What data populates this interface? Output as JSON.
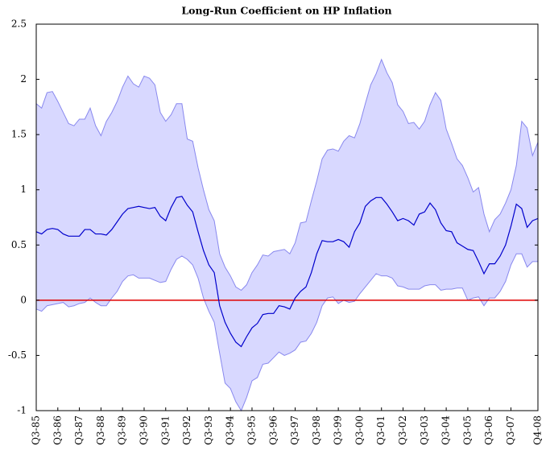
{
  "chart_data": {
    "type": "line",
    "title": "Long-Run Coefficient on HP Inflation",
    "categories": [
      "Q3-85",
      null,
      null,
      null,
      "Q3-86",
      null,
      null,
      null,
      "Q3-87",
      null,
      null,
      null,
      "Q3-88",
      null,
      null,
      null,
      "Q3-89",
      null,
      null,
      null,
      "Q3-90",
      null,
      null,
      null,
      "Q3-91",
      null,
      null,
      null,
      "Q3-92",
      null,
      null,
      null,
      "Q3-93",
      null,
      null,
      null,
      "Q3-94",
      null,
      null,
      null,
      "Q3-95",
      null,
      null,
      null,
      "Q3-96",
      null,
      null,
      null,
      "Q3-97",
      null,
      null,
      null,
      "Q3-98",
      null,
      null,
      null,
      "Q3-99",
      null,
      null,
      null,
      "Q3-00",
      null,
      null,
      null,
      "Q3-01",
      null,
      null,
      null,
      "Q3-02",
      null,
      null,
      null,
      "Q3-03",
      null,
      null,
      null,
      "Q3-04",
      null,
      null,
      null,
      "Q3-05",
      null,
      null,
      null,
      "Q3-06",
      null,
      null,
      null,
      "Q3-07",
      null,
      null,
      null,
      null,
      "Q4-08"
    ],
    "series": [
      {
        "color": "#0000cc",
        "values": [
          0.62,
          0.6,
          0.64,
          0.65,
          0.64,
          0.6,
          0.58,
          0.58,
          0.58,
          0.64,
          0.64,
          0.6,
          0.6,
          0.59,
          0.64,
          0.71,
          0.78,
          0.83,
          0.84,
          0.85,
          0.84,
          0.83,
          0.84,
          0.76,
          0.72,
          0.84,
          0.93,
          0.94,
          0.86,
          0.8,
          0.62,
          0.45,
          0.32,
          0.25,
          -0.05,
          -0.2,
          -0.3,
          -0.38,
          -0.42,
          -0.33,
          -0.25,
          -0.21,
          -0.13,
          -0.12,
          -0.12,
          -0.05,
          -0.06,
          -0.08,
          0.02,
          0.08,
          0.12,
          0.25,
          0.42,
          0.54,
          0.53,
          0.53,
          0.55,
          0.53,
          0.48,
          0.62,
          0.7,
          0.85,
          0.9,
          0.93,
          0.93,
          0.87,
          0.8,
          0.72,
          0.74,
          0.72,
          0.68,
          0.78,
          0.8,
          0.88,
          0.82,
          0.7,
          0.63,
          0.62,
          0.52,
          0.49,
          0.46,
          0.45,
          0.35,
          0.24,
          0.33,
          0.33,
          0.4,
          0.5,
          0.67,
          0.87,
          0.83,
          0.66,
          0.72,
          0.74
        ]
      }
    ],
    "band": {
      "color": "#d8d8ff",
      "edge_color": "#8888ee",
      "upper": [
        1.78,
        1.74,
        1.88,
        1.89,
        1.8,
        1.7,
        1.6,
        1.58,
        1.64,
        1.64,
        1.74,
        1.58,
        1.49,
        1.62,
        1.7,
        1.8,
        1.93,
        2.03,
        1.96,
        1.93,
        2.03,
        2.01,
        1.95,
        1.7,
        1.62,
        1.68,
        1.78,
        1.78,
        1.46,
        1.44,
        1.2,
        1.0,
        0.82,
        0.72,
        0.42,
        0.3,
        0.22,
        0.12,
        0.09,
        0.14,
        0.25,
        0.32,
        0.41,
        0.4,
        0.44,
        0.45,
        0.46,
        0.42,
        0.52,
        0.7,
        0.71,
        0.9,
        1.08,
        1.28,
        1.36,
        1.37,
        1.35,
        1.44,
        1.49,
        1.47,
        1.6,
        1.78,
        1.95,
        2.05,
        2.18,
        2.06,
        1.97,
        1.77,
        1.71,
        1.6,
        1.61,
        1.55,
        1.62,
        1.77,
        1.88,
        1.81,
        1.55,
        1.42,
        1.28,
        1.22,
        1.11,
        0.98,
        1.02,
        0.78,
        0.62,
        0.73,
        0.78,
        0.88,
        1.0,
        1.22,
        1.62,
        1.56,
        1.31,
        1.43
      ],
      "lower": [
        -0.08,
        -0.1,
        -0.05,
        -0.04,
        -0.03,
        -0.02,
        -0.06,
        -0.05,
        -0.03,
        -0.02,
        0.02,
        -0.02,
        -0.05,
        -0.05,
        0.02,
        0.08,
        0.17,
        0.22,
        0.23,
        0.2,
        0.2,
        0.2,
        0.18,
        0.16,
        0.17,
        0.28,
        0.37,
        0.4,
        0.37,
        0.32,
        0.2,
        0.02,
        -0.1,
        -0.2,
        -0.48,
        -0.75,
        -0.8,
        -0.92,
        -1.0,
        -0.88,
        -0.73,
        -0.7,
        -0.58,
        -0.57,
        -0.52,
        -0.47,
        -0.5,
        -0.48,
        -0.45,
        -0.38,
        -0.37,
        -0.3,
        -0.2,
        -0.05,
        0.02,
        0.03,
        -0.03,
        0.0,
        -0.02,
        -0.01,
        0.06,
        0.12,
        0.18,
        0.24,
        0.22,
        0.22,
        0.2,
        0.13,
        0.12,
        0.1,
        0.1,
        0.1,
        0.13,
        0.14,
        0.14,
        0.09,
        0.1,
        0.1,
        0.11,
        0.11,
        0.0,
        0.02,
        0.03,
        -0.05,
        0.02,
        0.02,
        0.08,
        0.17,
        0.32,
        0.42,
        0.42,
        0.3,
        0.35,
        0.35
      ]
    },
    "reference_line": {
      "value": 0,
      "color": "#e00000"
    },
    "ylim": [
      -1,
      2.5
    ],
    "yticks": [
      -1,
      -0.5,
      0,
      0.5,
      1,
      1.5,
      2,
      2.5
    ]
  }
}
